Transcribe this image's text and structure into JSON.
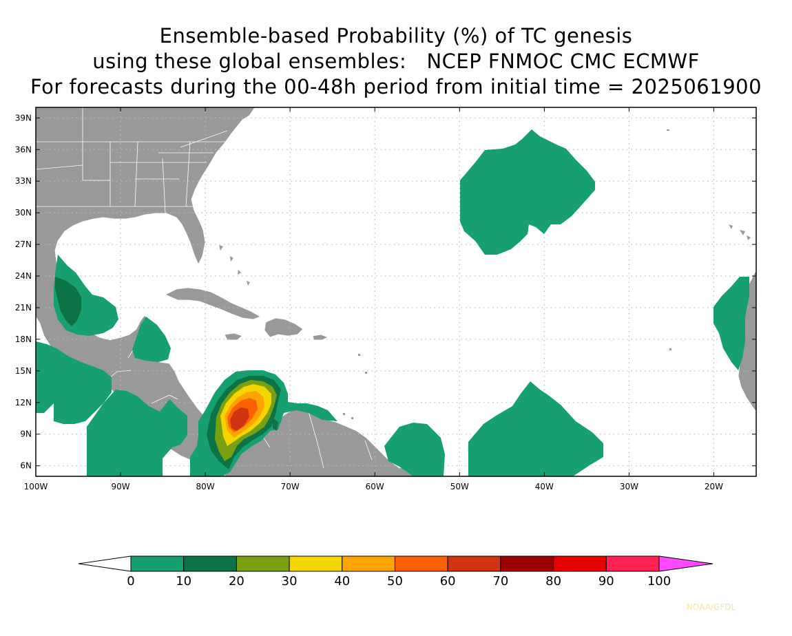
{
  "title": {
    "line1": "Ensemble-based Probability (%) of TC genesis",
    "line2": "using these global ensembles:   NCEP FNMOC CMC ECMWF",
    "line3": "For forecasts during the 00-48h period from initial time = 2025061900"
  },
  "map": {
    "lon_range": [
      -100,
      -15
    ],
    "lat_range": [
      5,
      40
    ],
    "lat_ticks": [
      {
        "value": 39,
        "label": "39N"
      },
      {
        "value": 36,
        "label": "36N"
      },
      {
        "value": 33,
        "label": "33N"
      },
      {
        "value": 30,
        "label": "30N"
      },
      {
        "value": 27,
        "label": "27N"
      },
      {
        "value": 24,
        "label": "24N"
      },
      {
        "value": 21,
        "label": "21N"
      },
      {
        "value": 18,
        "label": "18N"
      },
      {
        "value": 15,
        "label": "15N"
      },
      {
        "value": 12,
        "label": "12N"
      },
      {
        "value": 9,
        "label": "9N"
      },
      {
        "value": 6,
        "label": "6N"
      }
    ],
    "lon_ticks": [
      {
        "value": -100,
        "label": "100W"
      },
      {
        "value": -90,
        "label": "90W"
      },
      {
        "value": -80,
        "label": "80W"
      },
      {
        "value": -70,
        "label": "70W"
      },
      {
        "value": -60,
        "label": "60W"
      },
      {
        "value": -50,
        "label": "50W"
      },
      {
        "value": -40,
        "label": "40W"
      },
      {
        "value": -30,
        "label": "30W"
      },
      {
        "value": -20,
        "label": "20W"
      }
    ],
    "colors": {
      "land": "#999999",
      "border": "#ffffff",
      "grid": "#bbbbbb"
    }
  },
  "colorbar": {
    "labels": [
      "0",
      "10",
      "20",
      "30",
      "40",
      "50",
      "60",
      "70",
      "80",
      "90",
      "100"
    ],
    "colors": [
      "#16a070",
      "#0c7346",
      "#7aa012",
      "#f5d500",
      "#fea300",
      "#fd6000",
      "#d03512",
      "#9c0000",
      "#e60000",
      "#fe2352"
    ],
    "under_color": "#ffffff",
    "over_color": "#ff4aff"
  },
  "credit": "NOAA/GFDL"
}
